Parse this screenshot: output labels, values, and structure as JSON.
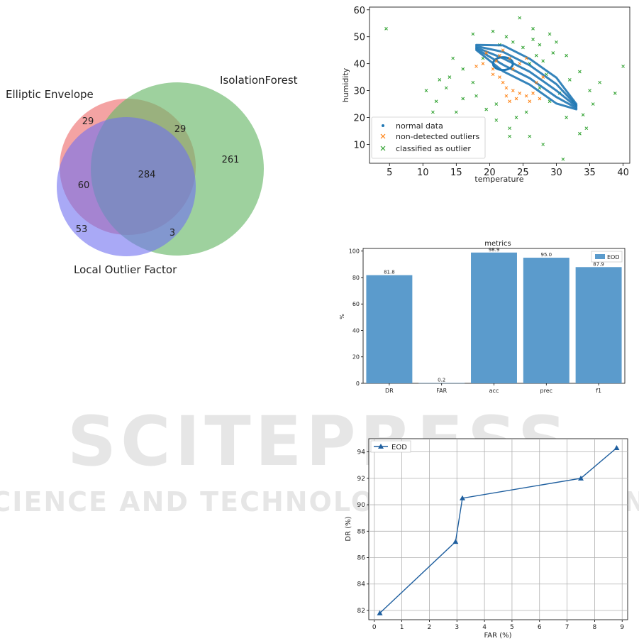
{
  "watermark": {
    "line1": "SCITEPRESS",
    "line2": "SCIENCE AND TECHNOLOGY PUBLICATIONS"
  },
  "chart_data": [
    {
      "type": "venn",
      "sets": [
        {
          "name": "Elliptic Envelope",
          "color": "#f08080"
        },
        {
          "name": "IsolationForest",
          "color": "#80c080"
        },
        {
          "name": "Local Outlier Factor",
          "color": "#8080f0"
        }
      ],
      "regions": [
        {
          "label": "EE only",
          "value": 29
        },
        {
          "label": "EE and IF",
          "value": 29
        },
        {
          "label": "IF only",
          "value": 261
        },
        {
          "label": "EE and LOF",
          "value": 60
        },
        {
          "label": "all three",
          "value": 284
        },
        {
          "label": "LOF only",
          "value": 53
        },
        {
          "label": "IF and LOF",
          "value": 3
        }
      ]
    },
    {
      "type": "scatter",
      "xlabel": "temperature",
      "ylabel": "humidity",
      "xlim": [
        2,
        41
      ],
      "ylim": [
        3,
        61
      ],
      "xticks": [
        5,
        10,
        15,
        20,
        25,
        30,
        35,
        40
      ],
      "yticks": [
        10,
        20,
        30,
        40,
        50,
        60
      ],
      "legend_position": "lower left",
      "series": [
        {
          "name": "normal data",
          "marker": "dot",
          "color": "#1f77b4"
        },
        {
          "name": "non-detected outliers",
          "marker": "x",
          "color": "#ff7f0e"
        },
        {
          "name": "classified as outlier",
          "marker": "x",
          "color": "#2ca02c"
        }
      ],
      "outlier_points": [
        [
          4.5,
          53
        ],
        [
          40,
          39
        ],
        [
          38.8,
          29
        ],
        [
          36.5,
          33
        ],
        [
          35.5,
          25
        ],
        [
          34.5,
          16
        ],
        [
          33.5,
          14
        ],
        [
          31,
          4.5
        ],
        [
          28,
          10
        ],
        [
          26,
          13
        ],
        [
          23,
          13
        ],
        [
          22.5,
          50
        ],
        [
          16.5,
          15
        ],
        [
          13,
          18
        ],
        [
          11.5,
          22
        ],
        [
          10.5,
          30
        ],
        [
          12,
          26
        ],
        [
          14,
          35
        ],
        [
          14.5,
          42
        ],
        [
          17.5,
          51
        ],
        [
          20.5,
          52
        ],
        [
          24.5,
          57
        ],
        [
          26.5,
          53
        ],
        [
          29,
          51
        ],
        [
          31.5,
          43
        ],
        [
          33.5,
          37
        ],
        [
          27.5,
          47
        ],
        [
          29.5,
          44
        ],
        [
          28.5,
          36
        ],
        [
          26,
          40
        ],
        [
          25,
          46
        ],
        [
          30.5,
          29
        ],
        [
          29,
          26
        ],
        [
          27.5,
          31
        ],
        [
          25.5,
          22
        ],
        [
          24,
          20
        ],
        [
          21,
          25
        ],
        [
          19.5,
          23
        ],
        [
          18,
          28
        ],
        [
          16,
          27
        ],
        [
          17.5,
          33
        ],
        [
          16,
          38
        ],
        [
          19,
          42
        ],
        [
          21.5,
          47
        ],
        [
          23.5,
          48
        ],
        [
          28,
          41
        ],
        [
          30,
          48
        ],
        [
          32,
          34
        ],
        [
          23,
          16
        ],
        [
          21,
          19
        ],
        [
          18.5,
          18
        ],
        [
          13.5,
          31
        ],
        [
          15,
          22
        ],
        [
          34,
          21
        ],
        [
          31.5,
          20
        ],
        [
          32.5,
          26
        ],
        [
          35,
          30
        ],
        [
          12.5,
          34
        ],
        [
          26.5,
          49
        ],
        [
          27,
          43
        ]
      ],
      "undetected_points": [
        [
          18,
          39
        ],
        [
          19,
          40
        ],
        [
          20.5,
          38
        ],
        [
          21,
          41
        ],
        [
          21.5,
          43
        ],
        [
          22,
          45
        ],
        [
          21.5,
          35
        ],
        [
          22,
          33
        ],
        [
          22.5,
          31
        ],
        [
          23.5,
          30
        ],
        [
          24.5,
          29
        ],
        [
          25.5,
          28
        ],
        [
          26.5,
          29
        ],
        [
          27,
          33
        ],
        [
          28,
          35
        ],
        [
          23.5,
          38
        ],
        [
          24.5,
          40
        ],
        [
          25.5,
          42
        ],
        [
          20.5,
          36
        ],
        [
          23,
          26
        ],
        [
          24,
          27
        ],
        [
          26,
          26
        ],
        [
          27.5,
          27
        ],
        [
          19.5,
          44
        ],
        [
          23,
          42
        ],
        [
          22.5,
          28
        ]
      ]
    },
    {
      "type": "bar",
      "title": "metrics",
      "ylabel": "%",
      "categories": [
        "DR",
        "FAR",
        "acc",
        "prec",
        "f1"
      ],
      "ylim": [
        0,
        102
      ],
      "yticks": [
        0,
        20,
        40,
        60,
        80,
        100
      ],
      "legend_position": "upper right",
      "series": [
        {
          "name": "EOD",
          "values": [
            81.8,
            0.2,
            98.9,
            95.0,
            87.9
          ],
          "color": "#5b9bcc"
        }
      ],
      "value_labels": [
        "81.8",
        "0.2",
        "98.9",
        "95.0",
        "87.9"
      ]
    },
    {
      "type": "line",
      "xlabel": "FAR (%)",
      "ylabel": "DR (%)",
      "xlim": [
        -0.2,
        9.2
      ],
      "ylim": [
        81.3,
        95.0
      ],
      "xticks": [
        0,
        1,
        2,
        3,
        4,
        5,
        6,
        7,
        8,
        9
      ],
      "yticks": [
        82,
        84,
        86,
        88,
        90,
        92,
        94
      ],
      "grid": true,
      "legend_position": "upper left",
      "series": [
        {
          "name": "EOD",
          "color": "#1f5f9f",
          "x": [
            0.2,
            2.95,
            3.2,
            7.5,
            8.8
          ],
          "y": [
            81.8,
            87.2,
            90.5,
            92.0,
            94.3
          ]
        }
      ]
    }
  ]
}
